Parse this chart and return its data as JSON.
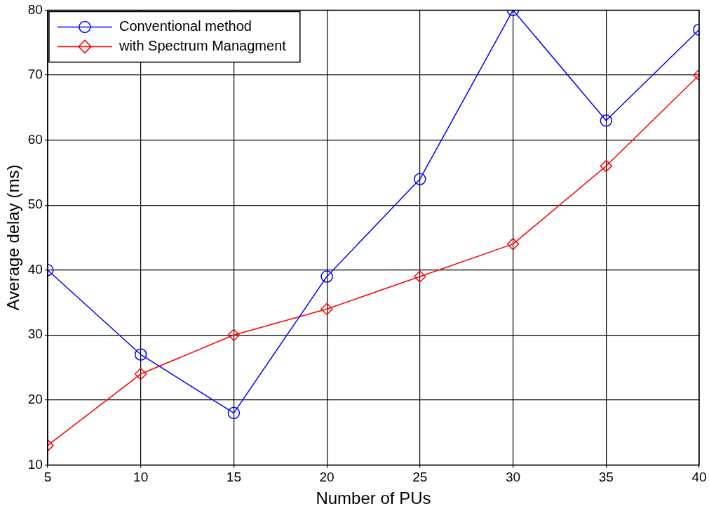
{
  "chart_data": {
    "type": "line",
    "xlabel": "Number of PUs",
    "ylabel": "Average delay (ms)",
    "x": [
      5,
      10,
      15,
      20,
      25,
      30,
      35,
      40
    ],
    "series": [
      {
        "name": "Conventional method",
        "color": "#0000ff",
        "marker": "circle",
        "values": [
          40,
          27,
          18,
          39,
          54,
          80,
          63,
          77
        ]
      },
      {
        "name": "with Spectrum Managment",
        "color": "#ff0000",
        "marker": "diamond",
        "values": [
          13,
          24,
          30,
          34,
          39,
          44,
          56,
          70
        ]
      }
    ],
    "xlim": [
      5,
      40
    ],
    "xticks": [
      5,
      10,
      15,
      20,
      25,
      30,
      35,
      40
    ],
    "ylim": [
      10,
      80
    ],
    "yticks": [
      10,
      20,
      30,
      40,
      50,
      60,
      70,
      80
    ],
    "grid": true,
    "legend": "top left",
    "line_style": "solid"
  }
}
